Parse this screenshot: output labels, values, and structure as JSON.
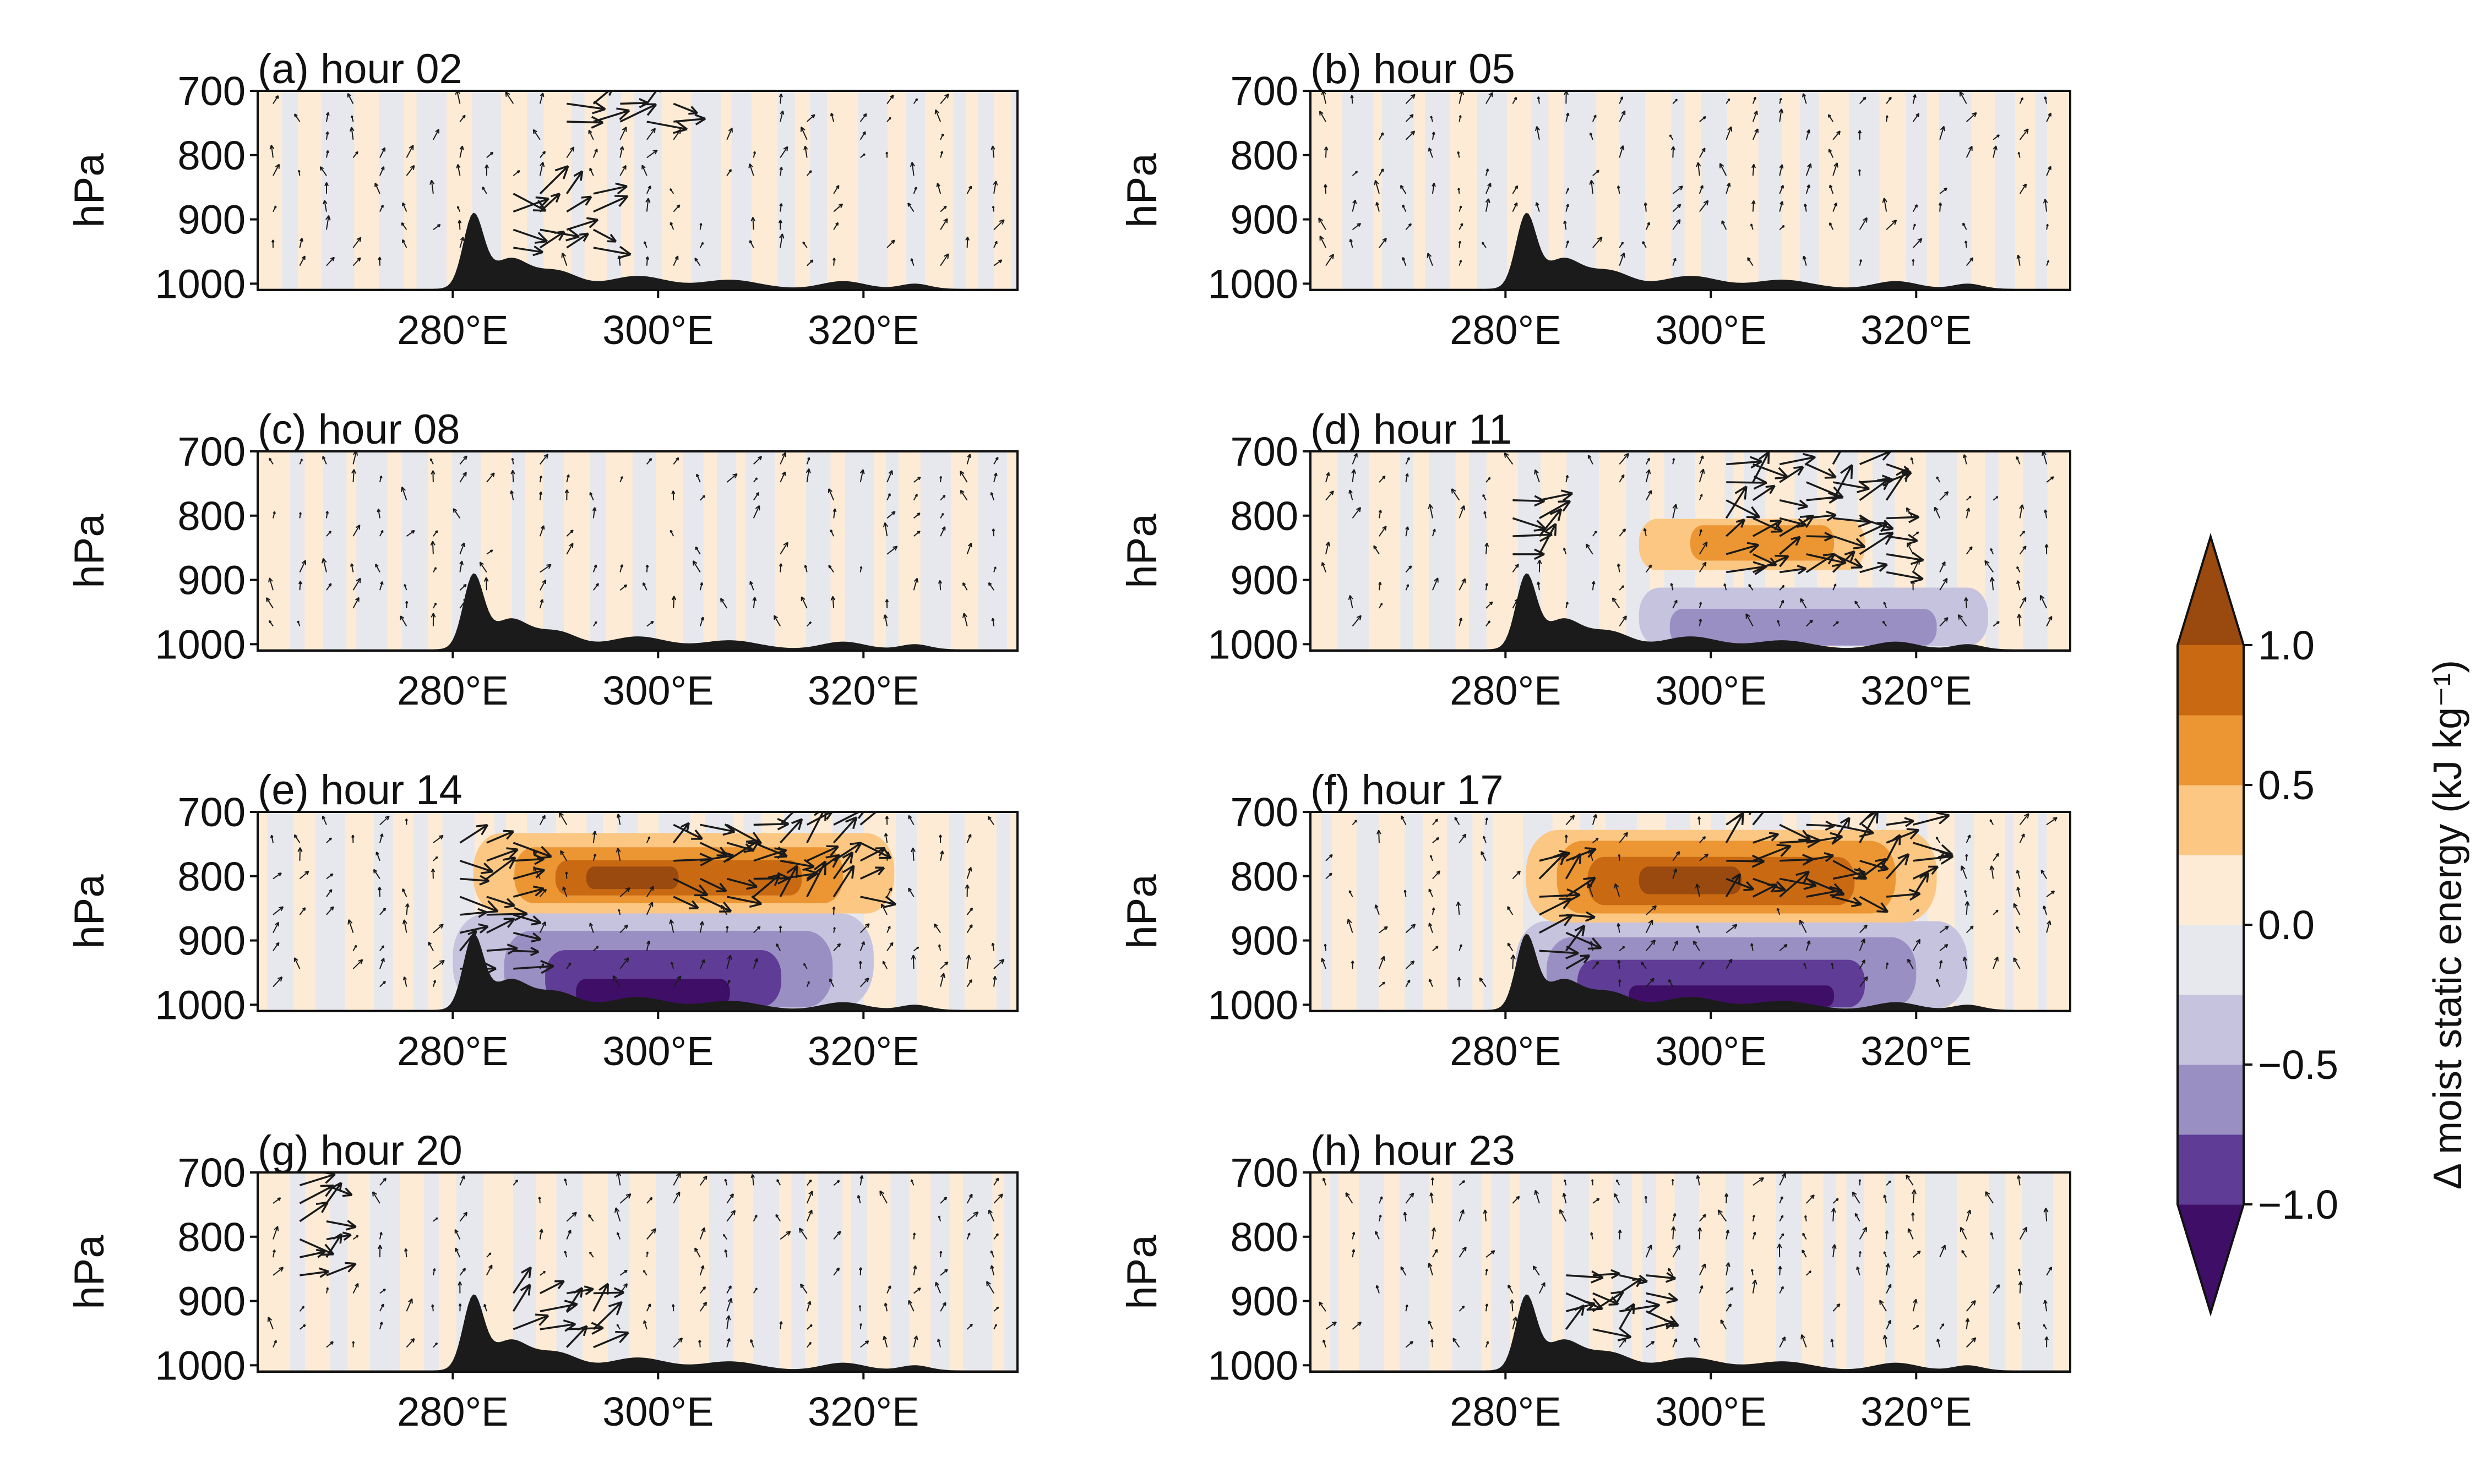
{
  "figure": {
    "colorbar": {
      "label": "Δ moist static energy (kJ kg⁻¹)",
      "ticks": [
        1.0,
        0.5,
        0.0,
        -0.5,
        -1.0
      ],
      "tick_labels": [
        "1.0",
        "0.5",
        "0.0",
        "−0.5",
        "−1.0"
      ],
      "levels": [
        -1.25,
        -1.0,
        -0.75,
        -0.5,
        -0.25,
        0.0,
        0.25,
        0.5,
        0.75,
        1.0,
        1.25
      ],
      "colors": [
        "#3f0f68",
        "#5f3c95",
        "#9a8fc3",
        "#c6c3df",
        "#e6e8ee",
        "#fdebd5",
        "#fbc783",
        "#eb9632",
        "#c96a13",
        "#9a4a0e"
      ],
      "extend": "both"
    }
  },
  "chart_data": [
    {
      "panel": "a",
      "title": "(a) hour 02",
      "type": "heatmap",
      "ylabel": "hPa",
      "xlabel": "",
      "x_ticks": [
        280,
        300,
        320
      ],
      "x_tick_labels": [
        "280°E",
        "300°E",
        "320°E"
      ],
      "y_ticks": [
        700,
        800,
        900,
        1000
      ],
      "y_tick_labels": [
        "700",
        "800",
        "900",
        "1000"
      ],
      "xlim": [
        261,
        335
      ],
      "ylim": [
        1010,
        700
      ],
      "anomaly_regions": [],
      "terrain_peak": {
        "lon": 282,
        "p": 895
      },
      "wind_arrows": "weak, scattered; strongest 285–295°E below 850 hPa"
    },
    {
      "panel": "b",
      "title": "(b) hour 05",
      "type": "heatmap",
      "ylabel": "hPa",
      "xlabel": "",
      "x_ticks": [
        280,
        300,
        320
      ],
      "x_tick_labels": [
        "280°E",
        "300°E",
        "320°E"
      ],
      "y_ticks": [
        700,
        800,
        900,
        1000
      ],
      "y_tick_labels": [
        "700",
        "800",
        "900",
        "1000"
      ],
      "xlim": [
        261,
        335
      ],
      "ylim": [
        1010,
        700
      ],
      "anomaly_regions": [],
      "terrain_peak": {
        "lon": 282,
        "p": 895
      },
      "wind_arrows": "weak, scattered"
    },
    {
      "panel": "c",
      "title": "(c) hour 08",
      "type": "heatmap",
      "ylabel": "hPa",
      "xlabel": "",
      "x_ticks": [
        280,
        300,
        320
      ],
      "x_tick_labels": [
        "280°E",
        "300°E",
        "320°E"
      ],
      "y_ticks": [
        700,
        800,
        900,
        1000
      ],
      "y_tick_labels": [
        "700",
        "800",
        "900",
        "1000"
      ],
      "xlim": [
        261,
        335
      ],
      "ylim": [
        1010,
        700
      ],
      "anomaly_regions": [],
      "terrain_peak": {
        "lon": 282,
        "p": 895
      },
      "wind_arrows": "weak, scattered"
    },
    {
      "panel": "d",
      "title": "(d) hour 11",
      "type": "heatmap",
      "ylabel": "hPa",
      "xlabel": "",
      "x_ticks": [
        280,
        300,
        320
      ],
      "x_tick_labels": [
        "280°E",
        "300°E",
        "320°E"
      ],
      "y_ticks": [
        700,
        800,
        900,
        1000
      ],
      "y_tick_labels": [
        "700",
        "800",
        "900",
        "1000"
      ],
      "xlim": [
        261,
        335
      ],
      "ylim": [
        1010,
        700
      ],
      "anomaly_regions": [
        {
          "lon": [
            293,
            327
          ],
          "p": [
            912,
            1003
          ],
          "value": -0.3
        },
        {
          "lon": [
            296,
            322
          ],
          "p": [
            945,
            1002
          ],
          "value": -0.55
        },
        {
          "lon": [
            293,
            315
          ],
          "p": [
            805,
            885
          ],
          "value": 0.3
        },
        {
          "lon": [
            298,
            312
          ],
          "p": [
            815,
            870
          ],
          "value": 0.55
        }
      ],
      "terrain_peak": {
        "lon": 282,
        "p": 895
      },
      "wind_arrows": "ascent near 280–284°E; stronger aloft 300–318°E"
    },
    {
      "panel": "e",
      "title": "(e) hour 14",
      "type": "heatmap",
      "ylabel": "hPa",
      "xlabel": "",
      "x_ticks": [
        280,
        300,
        320
      ],
      "x_tick_labels": [
        "280°E",
        "300°E",
        "320°E"
      ],
      "y_ticks": [
        700,
        800,
        900,
        1000
      ],
      "y_tick_labels": [
        "700",
        "800",
        "900",
        "1000"
      ],
      "xlim": [
        261,
        335
      ],
      "ylim": [
        1010,
        700
      ],
      "anomaly_regions": [
        {
          "lon": [
            280,
            321
          ],
          "p": [
            858,
            1005
          ],
          "value": -0.3
        },
        {
          "lon": [
            285,
            317
          ],
          "p": [
            885,
            1004
          ],
          "value": -0.55
        },
        {
          "lon": [
            289,
            312
          ],
          "p": [
            915,
            1003
          ],
          "value": -0.8
        },
        {
          "lon": [
            292,
            307
          ],
          "p": [
            960,
            1002
          ],
          "value": -1.05
        },
        {
          "lon": [
            282,
            323
          ],
          "p": [
            733,
            858
          ],
          "value": 0.3
        },
        {
          "lon": [
            286,
            318
          ],
          "p": [
            755,
            842
          ],
          "value": 0.55
        },
        {
          "lon": [
            290,
            314
          ],
          "p": [
            775,
            830
          ],
          "value": 0.8
        },
        {
          "lon": [
            293,
            302
          ],
          "p": [
            785,
            820
          ],
          "value": 1.05
        }
      ],
      "terrain_peak": {
        "lon": 282,
        "p": 895
      },
      "wind_arrows": "strong ascent over slope 280–286°E; strong flow 300–320°E aloft"
    },
    {
      "panel": "f",
      "title": "(f) hour 17",
      "type": "heatmap",
      "ylabel": "hPa",
      "xlabel": "",
      "x_ticks": [
        280,
        300,
        320
      ],
      "x_tick_labels": [
        "280°E",
        "300°E",
        "320°E"
      ],
      "y_ticks": [
        700,
        800,
        900,
        1000
      ],
      "y_tick_labels": [
        "700",
        "800",
        "900",
        "1000"
      ],
      "xlim": [
        261,
        335
      ],
      "ylim": [
        1010,
        700
      ],
      "anomaly_regions": [
        {
          "lon": [
            281,
            325
          ],
          "p": [
            870,
            1006
          ],
          "value": -0.3
        },
        {
          "lon": [
            284,
            320
          ],
          "p": [
            895,
            1005
          ],
          "value": -0.55
        },
        {
          "lon": [
            287,
            315
          ],
          "p": [
            930,
            1004
          ],
          "value": -0.8
        },
        {
          "lon": [
            292,
            312
          ],
          "p": [
            970,
            1003
          ],
          "value": -1.05
        },
        {
          "lon": [
            282,
            322
          ],
          "p": [
            728,
            872
          ],
          "value": 0.3
        },
        {
          "lon": [
            285,
            318
          ],
          "p": [
            745,
            858
          ],
          "value": 0.55
        },
        {
          "lon": [
            288,
            314
          ],
          "p": [
            770,
            845
          ],
          "value": 0.8
        },
        {
          "lon": [
            293,
            303
          ],
          "p": [
            785,
            828
          ],
          "value": 1.05
        }
      ],
      "terrain_peak": {
        "lon": 282,
        "p": 895
      },
      "wind_arrows": "strong flow 300–320°E aloft; ascent along slope"
    },
    {
      "panel": "g",
      "title": "(g) hour 20",
      "type": "heatmap",
      "ylabel": "hPa",
      "xlabel": "",
      "x_ticks": [
        280,
        300,
        320
      ],
      "x_tick_labels": [
        "280°E",
        "300°E",
        "320°E"
      ],
      "y_ticks": [
        700,
        800,
        900,
        1000
      ],
      "y_tick_labels": [
        "700",
        "800",
        "900",
        "1000"
      ],
      "xlim": [
        261,
        335
      ],
      "ylim": [
        1010,
        700
      ],
      "anomaly_regions": [],
      "terrain_peak": {
        "lon": 282,
        "p": 895
      },
      "wind_arrows": "moderate, scattered"
    },
    {
      "panel": "h",
      "title": "(h) hour 23",
      "type": "heatmap",
      "ylabel": "hPa",
      "xlabel": "",
      "x_ticks": [
        280,
        300,
        320
      ],
      "x_tick_labels": [
        "280°E",
        "300°E",
        "320°E"
      ],
      "y_ticks": [
        700,
        800,
        900,
        1000
      ],
      "y_tick_labels": [
        "700",
        "800",
        "900",
        "1000"
      ],
      "xlim": [
        261,
        335
      ],
      "ylim": [
        1010,
        700
      ],
      "anomaly_regions": [],
      "terrain_peak": {
        "lon": 282,
        "p": 895
      },
      "wind_arrows": "moderate; strongest 285–295°E low levels"
    }
  ]
}
